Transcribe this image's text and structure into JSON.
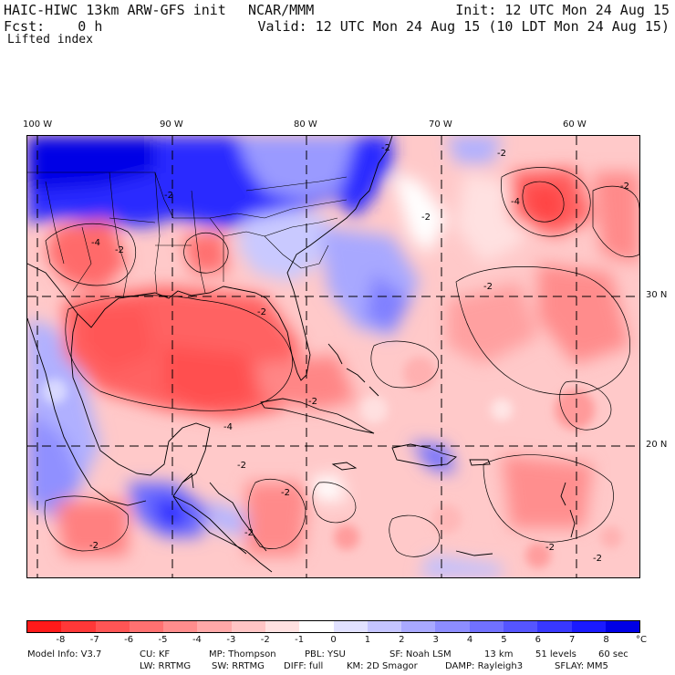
{
  "header": {
    "model": "HAIC-HIWC 13km ARW-GFS init",
    "center": "NCAR/MMM",
    "init": "Init: 12 UTC Mon 24 Aug 15",
    "fcst": "Fcst:    0 h",
    "valid": "Valid: 12 UTC Mon 24 Aug 15 (10 LDT Mon 24 Aug 15)",
    "field": "Lifted index"
  },
  "map": {
    "lon_labels": [
      "100 W",
      "90 W",
      "80 W",
      "70 W",
      "60 W"
    ],
    "lat_labels": [
      "30 N",
      "20 N"
    ],
    "contour_labels": [
      "-2",
      "-4"
    ]
  },
  "colorbar": {
    "tick_labels": [
      "-8",
      "-7",
      "-6",
      "-5",
      "-4",
      "-3",
      "-2",
      "-1",
      "0",
      "1",
      "2",
      "3",
      "4",
      "5",
      "6",
      "7",
      "8"
    ],
    "unit": "°C",
    "colors": [
      "#ff1a1a",
      "#ff3838",
      "#ff5555",
      "#ff7171",
      "#ff8d8d",
      "#ffa9a9",
      "#ffc5c5",
      "#ffe1e1",
      "#ffffff",
      "#e1e1ff",
      "#c5c5ff",
      "#a9a9ff",
      "#8d8dff",
      "#7171ff",
      "#5555ff",
      "#3838ff",
      "#1a1aff",
      "#0000e6"
    ]
  },
  "footer": {
    "line1": [
      "Model Info: V3.7",
      "CU: KF",
      "MP: Thompson",
      "PBL: YSU",
      "SF: Noah LSM",
      "13 km",
      "51 levels",
      "60 sec"
    ],
    "line2": [
      "LW: RRTMG",
      "SW: RRTMG",
      "DIFF: full",
      "KM: 2D Smagor",
      "DAMP: Rayleigh3",
      "SFLAY: MM5"
    ]
  }
}
